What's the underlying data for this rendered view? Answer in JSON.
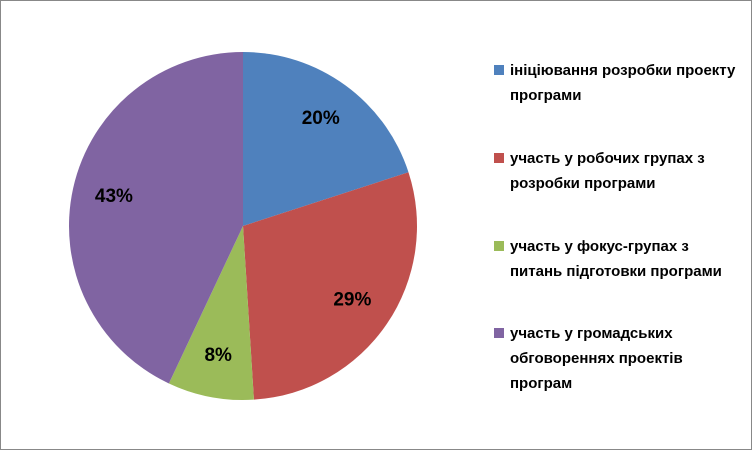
{
  "chart_data": {
    "type": "pie",
    "categories": [
      "ініціювання розробки проекту програми",
      "участь у робочих групах з розробки програми",
      "участь у фокус-групах з питань підготовки програми",
      "участь у громадських обговореннях проектів програм"
    ],
    "values": [
      20,
      29,
      8,
      43
    ],
    "value_labels": [
      "20%",
      "29%",
      "8%",
      "43%"
    ],
    "colors": [
      "#4f81bd",
      "#c0504d",
      "#9bbb59",
      "#8064a2"
    ],
    "legend": "right"
  }
}
